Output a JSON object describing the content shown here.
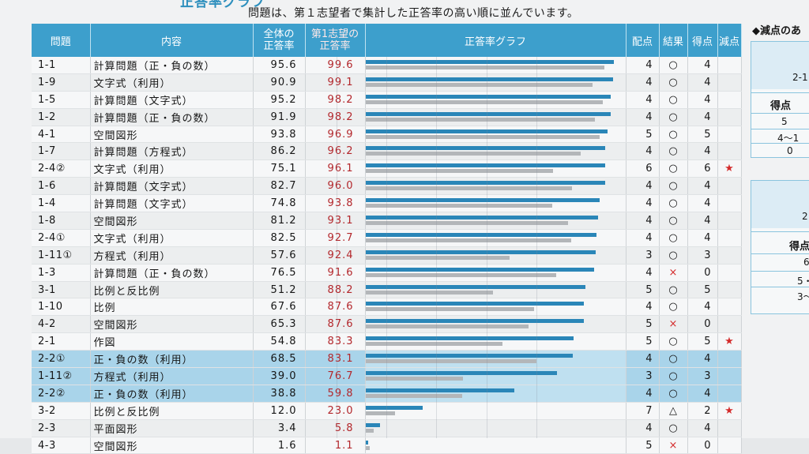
{
  "header": {
    "title": "正答率グラフ",
    "note": "問題は、第１志望者で集計した正答率の高い順に並んでいます。"
  },
  "table": {
    "columns": [
      "問題",
      "内容",
      "全体の\n正答率",
      "第1志望の\n正答率",
      "正答率グラフ",
      "配点",
      "結果",
      "得点",
      "減点"
    ],
    "rows": [
      {
        "q": "1-1",
        "content": "計算問題（正・負の数）",
        "all": "95.6",
        "first": "99.6",
        "points": "4",
        "result": "○",
        "score": "4",
        "star": "",
        "highlight": false
      },
      {
        "q": "1-9",
        "content": "文字式（利用）",
        "all": "90.9",
        "first": "99.1",
        "points": "4",
        "result": "○",
        "score": "4",
        "star": "",
        "highlight": false
      },
      {
        "q": "1-5",
        "content": "計算問題（文字式）",
        "all": "95.2",
        "first": "98.2",
        "points": "4",
        "result": "○",
        "score": "4",
        "star": "",
        "highlight": false
      },
      {
        "q": "1-2",
        "content": "計算問題（正・負の数）",
        "all": "91.9",
        "first": "98.2",
        "points": "4",
        "result": "○",
        "score": "4",
        "star": "",
        "highlight": false
      },
      {
        "q": "4-1",
        "content": "空間図形",
        "all": "93.8",
        "first": "96.9",
        "points": "5",
        "result": "○",
        "score": "5",
        "star": "",
        "highlight": false
      },
      {
        "q": "1-7",
        "content": "計算問題（方程式）",
        "all": "86.2",
        "first": "96.2",
        "points": "4",
        "result": "○",
        "score": "4",
        "star": "",
        "highlight": false
      },
      {
        "q": "2-4②",
        "content": "文字式（利用）",
        "all": "75.1",
        "first": "96.1",
        "points": "6",
        "result": "○",
        "score": "6",
        "star": "★",
        "highlight": false
      },
      {
        "q": "1-6",
        "content": "計算問題（文字式）",
        "all": "82.7",
        "first": "96.0",
        "points": "4",
        "result": "○",
        "score": "4",
        "star": "",
        "highlight": false
      },
      {
        "q": "1-4",
        "content": "計算問題（文字式）",
        "all": "74.8",
        "first": "93.8",
        "points": "4",
        "result": "○",
        "score": "4",
        "star": "",
        "highlight": false
      },
      {
        "q": "1-8",
        "content": "空間図形",
        "all": "81.2",
        "first": "93.1",
        "points": "4",
        "result": "○",
        "score": "4",
        "star": "",
        "highlight": false
      },
      {
        "q": "2-4①",
        "content": "文字式（利用）",
        "all": "82.5",
        "first": "92.7",
        "points": "4",
        "result": "○",
        "score": "4",
        "star": "",
        "highlight": false
      },
      {
        "q": "1-11①",
        "content": "方程式（利用）",
        "all": "57.6",
        "first": "92.4",
        "points": "3",
        "result": "○",
        "score": "3",
        "star": "",
        "highlight": false
      },
      {
        "q": "1-3",
        "content": "計算問題（正・負の数）",
        "all": "76.5",
        "first": "91.6",
        "points": "4",
        "result": "×",
        "score": "0",
        "star": "",
        "highlight": false
      },
      {
        "q": "3-1",
        "content": "比例と反比例",
        "all": "51.2",
        "first": "88.2",
        "points": "5",
        "result": "○",
        "score": "5",
        "star": "",
        "highlight": false
      },
      {
        "q": "1-10",
        "content": "比例",
        "all": "67.6",
        "first": "87.6",
        "points": "4",
        "result": "○",
        "score": "4",
        "star": "",
        "highlight": false
      },
      {
        "q": "4-2",
        "content": "空間図形",
        "all": "65.3",
        "first": "87.6",
        "points": "5",
        "result": "×",
        "score": "0",
        "star": "",
        "highlight": false
      },
      {
        "q": "2-1",
        "content": "作図",
        "all": "54.8",
        "first": "83.3",
        "points": "5",
        "result": "○",
        "score": "5",
        "star": "★",
        "highlight": false
      },
      {
        "q": "2-2①",
        "content": "正・負の数（利用）",
        "all": "68.5",
        "first": "83.1",
        "points": "4",
        "result": "○",
        "score": "4",
        "star": "",
        "highlight": true
      },
      {
        "q": "1-11②",
        "content": "方程式（利用）",
        "all": "39.0",
        "first": "76.7",
        "points": "3",
        "result": "○",
        "score": "3",
        "star": "",
        "highlight": true
      },
      {
        "q": "2-2②",
        "content": "正・負の数（利用）",
        "all": "38.8",
        "first": "59.8",
        "points": "4",
        "result": "○",
        "score": "4",
        "star": "",
        "highlight": true
      },
      {
        "q": "3-2",
        "content": "比例と反比例",
        "all": "12.0",
        "first": "23.0",
        "points": "7",
        "result": "△",
        "score": "2",
        "star": "★",
        "highlight": false
      },
      {
        "q": "2-3",
        "content": "平面図形",
        "all": "3.4",
        "first": "5.8",
        "points": "4",
        "result": "○",
        "score": "4",
        "star": "",
        "highlight": false
      },
      {
        "q": "4-3",
        "content": "空間図形",
        "all": "1.6",
        "first": "1.1",
        "points": "5",
        "result": "×",
        "score": "0",
        "star": "",
        "highlight": false
      }
    ]
  },
  "side_panel": {
    "title": "◆減点のあ",
    "box1": {
      "label": "2-1"
    },
    "box2": {
      "header": "得点",
      "rows": [
        "5",
        "4～1",
        "0"
      ]
    },
    "box3": {
      "label": "2"
    },
    "box4": {
      "header": "得点",
      "rows": [
        "6",
        "5・",
        "3～"
      ]
    }
  }
}
